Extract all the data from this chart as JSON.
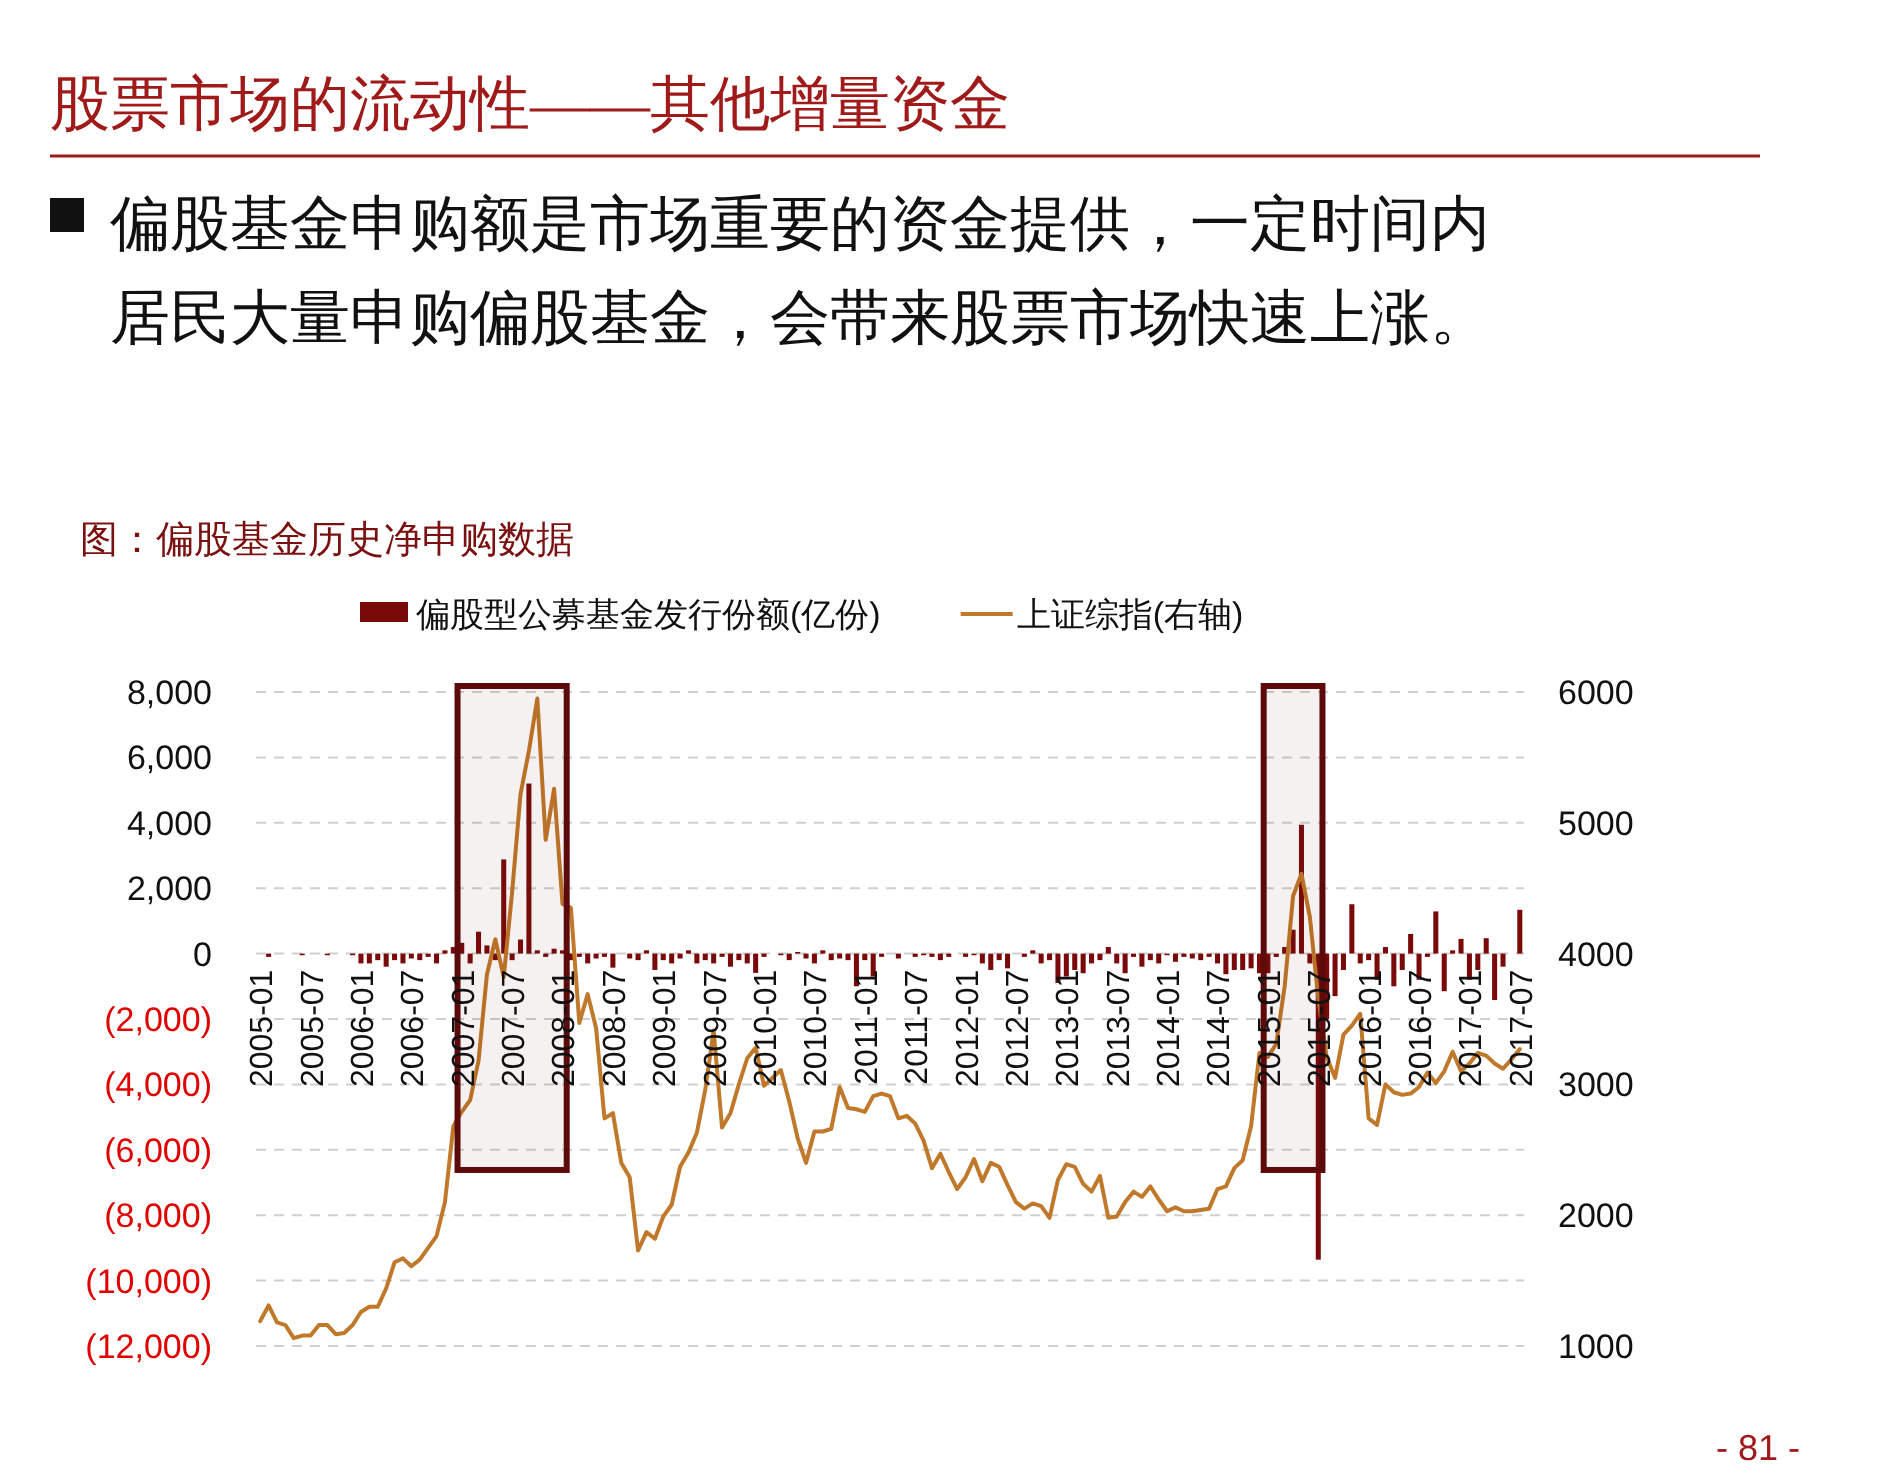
{
  "chart_data": {
    "type": "bar",
    "title": "股票市场的流动性——其他增量资金",
    "subtitle": "偏股基金申购额是市场重要的资金提供，一定时间内居民大量申购偏股基金，会带来股票市场快速上涨。",
    "annotations": [
      "图：偏股基金历史净申购数据",
      "- 81 -"
    ],
    "categories": [
      "2005-01",
      null,
      null,
      null,
      null,
      null,
      "2005-07",
      null,
      null,
      null,
      null,
      null,
      "2006-01",
      null,
      null,
      null,
      null,
      null,
      "2006-07",
      null,
      null,
      null,
      null,
      null,
      "2007-01",
      null,
      null,
      null,
      null,
      null,
      "2007-07",
      null,
      null,
      null,
      null,
      null,
      "2008-01",
      null,
      null,
      null,
      null,
      null,
      "2008-07",
      null,
      null,
      null,
      null,
      null,
      "2009-01",
      null,
      null,
      null,
      null,
      null,
      "2009-07",
      null,
      null,
      null,
      null,
      null,
      "2010-01",
      null,
      null,
      null,
      null,
      null,
      "2010-07",
      null,
      null,
      null,
      null,
      null,
      "2011-01",
      null,
      null,
      null,
      null,
      null,
      "2011-07",
      null,
      null,
      null,
      null,
      null,
      "2012-01",
      null,
      null,
      null,
      null,
      null,
      "2012-07",
      null,
      null,
      null,
      null,
      null,
      "2013-01",
      null,
      null,
      null,
      null,
      null,
      "2013-07",
      null,
      null,
      null,
      null,
      null,
      "2014-01",
      null,
      null,
      null,
      null,
      null,
      "2014-07",
      null,
      null,
      null,
      null,
      null,
      "2015-01",
      null,
      null,
      null,
      null,
      null,
      "2015-07",
      null,
      null,
      null,
      null,
      null,
      "2016-01",
      null,
      null,
      null,
      null,
      null,
      "2016-07",
      null,
      null,
      null,
      null,
      null,
      "2017-01",
      null,
      null,
      null,
      null,
      null,
      "2017-07"
    ],
    "series": [
      {
        "name": "偏股型公募基金发行份额(亿份)",
        "color": "#7a0a0a",
        "values": [
          0,
          -100,
          0,
          0,
          0,
          -50,
          0,
          0,
          -50,
          0,
          0,
          -50,
          -300,
          -300,
          -200,
          -400,
          -200,
          -300,
          -150,
          -200,
          -100,
          -300,
          100,
          200,
          330,
          -300,
          670,
          250,
          -200,
          2880,
          -200,
          430,
          5200,
          100,
          -100,
          150,
          100,
          -200,
          -100,
          -300,
          -150,
          -100,
          -430,
          0,
          -150,
          -200,
          100,
          -500,
          -200,
          -300,
          -150,
          100,
          -300,
          -200,
          -300,
          -100,
          -400,
          -200,
          -300,
          -590,
          -100,
          0,
          -50,
          -200,
          50,
          -150,
          -300,
          100,
          -200,
          -150,
          -200,
          -1000,
          -200,
          -700,
          -100,
          0,
          -150,
          0,
          -100,
          -50,
          -100,
          -200,
          -100,
          0,
          -100,
          -50,
          -300,
          -500,
          -200,
          -450,
          0,
          -100,
          100,
          -300,
          -200,
          -900,
          -700,
          -500,
          -600,
          -300,
          -200,
          200,
          -300,
          -600,
          -100,
          -400,
          -200,
          -300,
          -50,
          -250,
          -100,
          -150,
          -200,
          -100,
          -300,
          -630,
          -500,
          -500,
          -450,
          -600,
          -600,
          -100,
          200,
          730,
          3940,
          -300,
          -9360,
          -2000,
          -1300,
          -500,
          1510,
          -300,
          -200,
          -800,
          200,
          -1000,
          -500,
          600,
          -800,
          -100,
          1290,
          -1150,
          100,
          450,
          -800,
          -500,
          470,
          -1420,
          -400,
          0,
          1340
        ]
      },
      {
        "name": "上证综指(右轴)",
        "type": "line",
        "axis": "y2",
        "color": "#c0782a",
        "values": [
          1190,
          1310,
          1180,
          1160,
          1060,
          1080,
          1080,
          1160,
          1160,
          1090,
          1100,
          1160,
          1260,
          1300,
          1300,
          1440,
          1640,
          1670,
          1610,
          1660,
          1750,
          1840,
          2100,
          2680,
          2790,
          2880,
          3180,
          3840,
          4110,
          3820,
          4470,
          5220,
          5550,
          5950,
          4870,
          5260,
          4380,
          4350,
          3470,
          3690,
          3430,
          2740,
          2780,
          2400,
          2290,
          1730,
          1870,
          1820,
          1990,
          2080,
          2370,
          2480,
          2630,
          2960,
          3410,
          2670,
          2780,
          3000,
          3200,
          3280,
          2990,
          3050,
          3110,
          2870,
          2590,
          2400,
          2640,
          2640,
          2660,
          2980,
          2820,
          2810,
          2790,
          2910,
          2930,
          2910,
          2740,
          2760,
          2700,
          2570,
          2360,
          2470,
          2330,
          2200,
          2290,
          2430,
          2260,
          2400,
          2370,
          2230,
          2100,
          2050,
          2090,
          2070,
          1980,
          2270,
          2390,
          2370,
          2240,
          2180,
          2300,
          1980,
          1990,
          2100,
          2180,
          2140,
          2220,
          2120,
          2030,
          2060,
          2030,
          2030,
          2040,
          2050,
          2200,
          2220,
          2360,
          2420,
          2680,
          3240,
          3210,
          3310,
          3750,
          4440,
          4610,
          4280,
          3660,
          3210,
          3050,
          3380,
          3450,
          3540,
          2740,
          2690,
          3000,
          2940,
          2920,
          2930,
          2980,
          3090,
          3010,
          3100,
          3250,
          3100,
          3160,
          3240,
          3220,
          3160,
          3120,
          3190,
          3270
        ]
      }
    ],
    "ylim": [
      -12000,
      8000
    ],
    "yticks": [
      {
        "value": -12000,
        "label": "(12,000)"
      },
      {
        "value": -10000,
        "label": "(10,000)"
      },
      {
        "value": -8000,
        "label": "(8,000)"
      },
      {
        "value": -6000,
        "label": "(6,000)"
      },
      {
        "value": -4000,
        "label": "(4,000)"
      },
      {
        "value": -2000,
        "label": "(2,000)"
      },
      0,
      {
        "value": 2000,
        "label": "2,000"
      },
      {
        "value": 4000,
        "label": "4,000"
      },
      {
        "value": 6000,
        "label": "6,000"
      },
      {
        "value": 8000,
        "label": "8,000"
      }
    ],
    "y2lim": [
      1000,
      6000
    ],
    "y2ticks": [
      1000,
      2000,
      3000,
      4000,
      5000,
      6000
    ],
    "grid": "y",
    "legend": "top",
    "marker": "none",
    "bands": [
      {
        "axis": "x",
        "from": "2007-01",
        "to": "2008-01",
        "color": "#5c0a0a"
      },
      {
        "axis": "x",
        "from": "2015-01",
        "to": "2015-07",
        "color": "#5c0a0a"
      }
    ]
  }
}
